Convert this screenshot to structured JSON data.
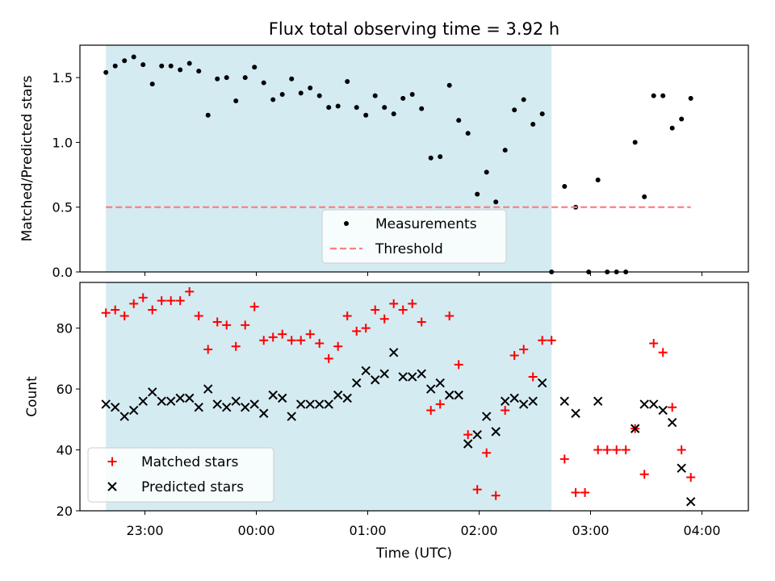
{
  "title": "Flux total observing time = 3.92 h",
  "xlabel": "Time (UTC)",
  "x_ticks": [
    "23:00",
    "00:00",
    "01:00",
    "02:00",
    "03:00",
    "04:00"
  ],
  "shaded_interval": {
    "start": "22:39",
    "end": "02:39",
    "color": "#add8e6"
  },
  "chart_data": [
    {
      "type": "scatter",
      "panel": "top",
      "ylabel": "Matched/Predicted stars",
      "ylim": [
        0,
        1.75
      ],
      "y_ticks": [
        0.0,
        0.5,
        1.0,
        1.5
      ],
      "y_tick_labels": [
        "0.0",
        "0.5",
        "1.0",
        "1.5"
      ],
      "grid": false,
      "legend_position": "lower-center",
      "series": [
        {
          "name": "Measurements",
          "marker": "dot",
          "color": "#000000",
          "points": [
            [
              "22:39",
              1.54
            ],
            [
              "22:44",
              1.59
            ],
            [
              "22:49",
              1.63
            ],
            [
              "22:54",
              1.66
            ],
            [
              "22:59",
              1.6
            ],
            [
              "23:04",
              1.45
            ],
            [
              "23:09",
              1.59
            ],
            [
              "23:14",
              1.59
            ],
            [
              "23:19",
              1.56
            ],
            [
              "23:24",
              1.61
            ],
            [
              "23:29",
              1.55
            ],
            [
              "23:34",
              1.21
            ],
            [
              "23:39",
              1.49
            ],
            [
              "23:44",
              1.5
            ],
            [
              "23:49",
              1.32
            ],
            [
              "23:54",
              1.5
            ],
            [
              "23:59",
              1.58
            ],
            [
              "00:04",
              1.46
            ],
            [
              "00:09",
              1.33
            ],
            [
              "00:14",
              1.37
            ],
            [
              "00:19",
              1.49
            ],
            [
              "00:24",
              1.38
            ],
            [
              "00:29",
              1.42
            ],
            [
              "00:34",
              1.36
            ],
            [
              "00:39",
              1.27
            ],
            [
              "00:44",
              1.28
            ],
            [
              "00:49",
              1.47
            ],
            [
              "00:54",
              1.27
            ],
            [
              "00:59",
              1.21
            ],
            [
              "01:04",
              1.36
            ],
            [
              "01:09",
              1.27
            ],
            [
              "01:14",
              1.22
            ],
            [
              "01:19",
              1.34
            ],
            [
              "01:24",
              1.37
            ],
            [
              "01:29",
              1.26
            ],
            [
              "01:34",
              0.88
            ],
            [
              "01:39",
              0.89
            ],
            [
              "01:44",
              1.44
            ],
            [
              "01:49",
              1.17
            ],
            [
              "01:54",
              1.07
            ],
            [
              "01:59",
              0.6
            ],
            [
              "02:04",
              0.77
            ],
            [
              "02:09",
              0.54
            ],
            [
              "02:14",
              0.94
            ],
            [
              "02:19",
              1.25
            ],
            [
              "02:24",
              1.33
            ],
            [
              "02:29",
              1.14
            ],
            [
              "02:34",
              1.22
            ],
            [
              "02:39",
              0.0
            ],
            [
              "02:46",
              0.66
            ],
            [
              "02:52",
              0.5
            ],
            [
              "02:59",
              0.0
            ],
            [
              "03:04",
              0.71
            ],
            [
              "03:09",
              0.0
            ],
            [
              "03:14",
              0.0
            ],
            [
              "03:19",
              0.0
            ],
            [
              "03:24",
              1.0
            ],
            [
              "03:29",
              0.58
            ],
            [
              "03:34",
              1.36
            ],
            [
              "03:39",
              1.36
            ],
            [
              "03:44",
              1.11
            ],
            [
              "03:49",
              1.18
            ],
            [
              "03:54",
              1.34
            ]
          ]
        },
        {
          "name": "Threshold",
          "marker": "dashed-line",
          "color": "#ff7f7f",
          "points": [
            [
              "22:39",
              0.5
            ],
            [
              "03:54",
              0.5
            ]
          ]
        }
      ]
    },
    {
      "type": "scatter",
      "panel": "bottom",
      "ylabel": "Count",
      "ylim": [
        20,
        95
      ],
      "y_ticks": [
        20,
        40,
        60,
        80
      ],
      "y_tick_labels": [
        "20",
        "40",
        "60",
        "80"
      ],
      "grid": false,
      "legend_position": "lower-left",
      "series": [
        {
          "name": "Matched stars",
          "marker": "plus",
          "color": "#ff0000",
          "points": [
            [
              "22:39",
              85
            ],
            [
              "22:44",
              86
            ],
            [
              "22:49",
              84
            ],
            [
              "22:54",
              88
            ],
            [
              "22:59",
              90
            ],
            [
              "23:04",
              86
            ],
            [
              "23:09",
              89
            ],
            [
              "23:14",
              89
            ],
            [
              "23:19",
              89
            ],
            [
              "23:24",
              92
            ],
            [
              "23:29",
              84
            ],
            [
              "23:34",
              73
            ],
            [
              "23:39",
              82
            ],
            [
              "23:44",
              81
            ],
            [
              "23:49",
              74
            ],
            [
              "23:54",
              81
            ],
            [
              "23:59",
              87
            ],
            [
              "00:04",
              76
            ],
            [
              "00:09",
              77
            ],
            [
              "00:14",
              78
            ],
            [
              "00:19",
              76
            ],
            [
              "00:24",
              76
            ],
            [
              "00:29",
              78
            ],
            [
              "00:34",
              75
            ],
            [
              "00:39",
              70
            ],
            [
              "00:44",
              74
            ],
            [
              "00:49",
              84
            ],
            [
              "00:54",
              79
            ],
            [
              "00:59",
              80
            ],
            [
              "01:04",
              86
            ],
            [
              "01:09",
              83
            ],
            [
              "01:14",
              88
            ],
            [
              "01:19",
              86
            ],
            [
              "01:24",
              88
            ],
            [
              "01:29",
              82
            ],
            [
              "01:34",
              53
            ],
            [
              "01:39",
              55
            ],
            [
              "01:44",
              84
            ],
            [
              "01:49",
              68
            ],
            [
              "01:54",
              45
            ],
            [
              "01:59",
              27
            ],
            [
              "02:04",
              39
            ],
            [
              "02:09",
              25
            ],
            [
              "02:14",
              53
            ],
            [
              "02:19",
              71
            ],
            [
              "02:24",
              73
            ],
            [
              "02:29",
              64
            ],
            [
              "02:34",
              76
            ],
            [
              "02:39",
              76
            ],
            [
              "02:46",
              37
            ],
            [
              "02:52",
              26
            ],
            [
              "02:57",
              26
            ],
            [
              "03:04",
              40
            ],
            [
              "03:09",
              40
            ],
            [
              "03:14",
              40
            ],
            [
              "03:19",
              40
            ],
            [
              "03:24",
              47
            ],
            [
              "03:29",
              32
            ],
            [
              "03:34",
              75
            ],
            [
              "03:39",
              72
            ],
            [
              "03:44",
              54
            ],
            [
              "03:49",
              40
            ],
            [
              "03:54",
              31
            ]
          ]
        },
        {
          "name": "Predicted stars",
          "marker": "x",
          "color": "#000000",
          "points": [
            [
              "22:39",
              55
            ],
            [
              "22:44",
              54
            ],
            [
              "22:49",
              51
            ],
            [
              "22:54",
              53
            ],
            [
              "22:59",
              56
            ],
            [
              "23:04",
              59
            ],
            [
              "23:09",
              56
            ],
            [
              "23:14",
              56
            ],
            [
              "23:19",
              57
            ],
            [
              "23:24",
              57
            ],
            [
              "23:29",
              54
            ],
            [
              "23:34",
              60
            ],
            [
              "23:39",
              55
            ],
            [
              "23:44",
              54
            ],
            [
              "23:49",
              56
            ],
            [
              "23:54",
              54
            ],
            [
              "23:59",
              55
            ],
            [
              "00:04",
              52
            ],
            [
              "00:09",
              58
            ],
            [
              "00:14",
              57
            ],
            [
              "00:19",
              51
            ],
            [
              "00:24",
              55
            ],
            [
              "00:29",
              55
            ],
            [
              "00:34",
              55
            ],
            [
              "00:39",
              55
            ],
            [
              "00:44",
              58
            ],
            [
              "00:49",
              57
            ],
            [
              "00:54",
              62
            ],
            [
              "00:59",
              66
            ],
            [
              "01:04",
              63
            ],
            [
              "01:09",
              65
            ],
            [
              "01:14",
              72
            ],
            [
              "01:19",
              64
            ],
            [
              "01:24",
              64
            ],
            [
              "01:29",
              65
            ],
            [
              "01:34",
              60
            ],
            [
              "01:39",
              62
            ],
            [
              "01:44",
              58
            ],
            [
              "01:49",
              58
            ],
            [
              "01:54",
              42
            ],
            [
              "01:59",
              45
            ],
            [
              "02:04",
              51
            ],
            [
              "02:09",
              46
            ],
            [
              "02:14",
              56
            ],
            [
              "02:19",
              57
            ],
            [
              "02:24",
              55
            ],
            [
              "02:29",
              56
            ],
            [
              "02:34",
              62
            ],
            [
              "02:46",
              56
            ],
            [
              "02:52",
              52
            ],
            [
              "03:04",
              56
            ],
            [
              "03:24",
              47
            ],
            [
              "03:29",
              55
            ],
            [
              "03:34",
              55
            ],
            [
              "03:39",
              53
            ],
            [
              "03:44",
              49
            ],
            [
              "03:49",
              34
            ],
            [
              "03:54",
              23
            ]
          ]
        }
      ]
    }
  ]
}
